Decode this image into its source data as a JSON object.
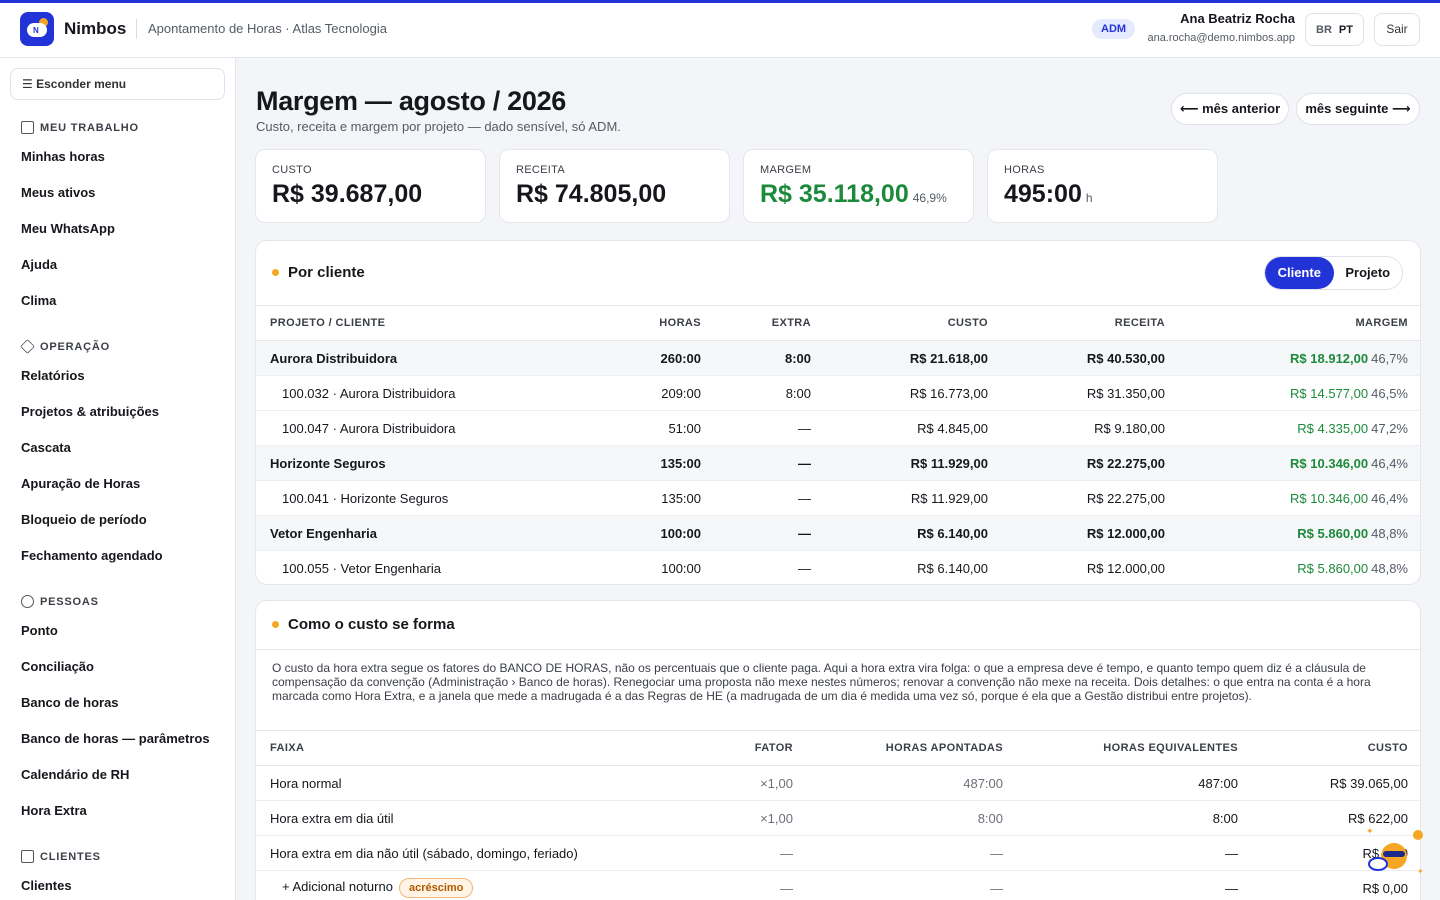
{
  "app": {
    "name": "Nimbos",
    "subtitle": "Apontamento de Horas · Atlas Tecnologia"
  },
  "header": {
    "role_badge": "ADM",
    "user_name": "Ana Beatriz Rocha",
    "user_email": "ana.rocha@demo.nimbos.app",
    "lang_br": "BR",
    "lang_pt": "PT",
    "logout": "Sair"
  },
  "sidebar": {
    "hide_menu": "☰ Esconder menu",
    "sections": [
      {
        "title": "MEU TRABALHO",
        "items": [
          "Minhas horas",
          "Meus ativos",
          "Meu WhatsApp",
          "Ajuda",
          "Clima"
        ]
      },
      {
        "title": "OPERAÇÃO",
        "items": [
          "Relatórios",
          "Projetos & atribuições",
          "Cascata",
          "Apuração de Horas",
          "Bloqueio de período",
          "Fechamento agendado"
        ]
      },
      {
        "title": "PESSOAS",
        "items": [
          "Ponto",
          "Conciliação",
          "Banco de horas",
          "Banco de horas — parâmetros",
          "Calendário de RH",
          "Hora Extra"
        ]
      },
      {
        "title": "CLIENTES",
        "items": [
          "Clientes"
        ]
      }
    ]
  },
  "page": {
    "title": "Margem — agosto / 2026",
    "subtitle": "Custo, receita e margem por projeto — dado sensível, só ADM.",
    "prev_month": "⟵ mês anterior",
    "next_month": "mês seguinte ⟶"
  },
  "kpis": [
    {
      "label": "CUSTO",
      "value": "R$ 39.687,00",
      "aux": ""
    },
    {
      "label": "RECEITA",
      "value": "R$ 74.805,00",
      "aux": ""
    },
    {
      "label": "MARGEM",
      "value": "R$ 35.118,00",
      "aux": "46,9%"
    },
    {
      "label": "HORAS",
      "value": "495:00",
      "aux": "h"
    }
  ],
  "by_client": {
    "title": "Por cliente",
    "toggle": {
      "client": "Cliente",
      "project": "Projeto"
    },
    "columns": [
      "PROJETO / CLIENTE",
      "HORAS",
      "EXTRA",
      "CUSTO",
      "RECEITA",
      "MARGEM"
    ],
    "rows": [
      {
        "type": "group",
        "name": "Aurora Distribuidora",
        "horas": "260:00",
        "extra": "8:00",
        "custo": "R$ 21.618,00",
        "receita": "R$ 40.530,00",
        "margem": "R$ 18.912,00",
        "pct": "46,7%"
      },
      {
        "type": "sub",
        "name": "100.032 · Aurora Distribuidora",
        "horas": "209:00",
        "extra": "8:00",
        "custo": "R$ 16.773,00",
        "receita": "R$ 31.350,00",
        "margem": "R$ 14.577,00",
        "pct": "46,5%"
      },
      {
        "type": "sub",
        "name": "100.047 · Aurora Distribuidora",
        "horas": "51:00",
        "extra": "—",
        "custo": "R$ 4.845,00",
        "receita": "R$ 9.180,00",
        "margem": "R$ 4.335,00",
        "pct": "47,2%"
      },
      {
        "type": "group",
        "name": "Horizonte Seguros",
        "horas": "135:00",
        "extra": "—",
        "custo": "R$ 11.929,00",
        "receita": "R$ 22.275,00",
        "margem": "R$ 10.346,00",
        "pct": "46,4%"
      },
      {
        "type": "sub",
        "name": "100.041 · Horizonte Seguros",
        "horas": "135:00",
        "extra": "—",
        "custo": "R$ 11.929,00",
        "receita": "R$ 22.275,00",
        "margem": "R$ 10.346,00",
        "pct": "46,4%"
      },
      {
        "type": "group",
        "name": "Vetor Engenharia",
        "horas": "100:00",
        "extra": "—",
        "custo": "R$ 6.140,00",
        "receita": "R$ 12.000,00",
        "margem": "R$ 5.860,00",
        "pct": "48,8%"
      },
      {
        "type": "sub",
        "name": "100.055 · Vetor Engenharia",
        "horas": "100:00",
        "extra": "—",
        "custo": "R$ 6.140,00",
        "receita": "R$ 12.000,00",
        "margem": "R$ 5.860,00",
        "pct": "48,8%"
      }
    ]
  },
  "cost_formation": {
    "title": "Como o custo se forma",
    "explanation": "O custo da hora extra segue os fatores do BANCO DE HORAS, não os percentuais que o cliente paga. Aqui a hora extra vira folga: o que a empresa deve é tempo, e quanto tempo quem diz é a cláusula de compensação da convenção (Administração › Banco de horas). Renegociar uma proposta não mexe nestes números; renovar a convenção não mexe na receita. Dois detalhes: o que entra na conta é a hora marcada como Hora Extra, e a janela que mede a madrugada é a das Regras de HE (a madrugada de um dia é medida uma vez só, porque é ela que a Gestão distribui entre projetos).",
    "columns": [
      "FAIXA",
      "FATOR",
      "HORAS APONTADAS",
      "HORAS EQUIVALENTES",
      "CUSTO"
    ],
    "rows": [
      {
        "faixa": "Hora normal",
        "badge": "",
        "fator": "×1,00",
        "apontadas": "487:00",
        "equivalentes": "487:00",
        "custo": "R$ 39.065,00"
      },
      {
        "faixa": "Hora extra em dia útil",
        "badge": "",
        "fator": "×1,00",
        "apontadas": "8:00",
        "equivalentes": "8:00",
        "custo": "R$ 622,00"
      },
      {
        "faixa": "Hora extra em dia não útil (sábado, domingo, feriado)",
        "badge": "",
        "fator": "—",
        "apontadas": "—",
        "equivalentes": "—",
        "custo": "R$ 0,00"
      },
      {
        "faixa": "+ Adicional noturno",
        "badge": "acréscimo",
        "fator": "—",
        "apontadas": "—",
        "equivalentes": "—",
        "custo": "R$ 0,00"
      }
    ]
  },
  "colors": {
    "accent": "#2234d8",
    "positive": "#1c8a3b",
    "warning": "#f5a623"
  }
}
